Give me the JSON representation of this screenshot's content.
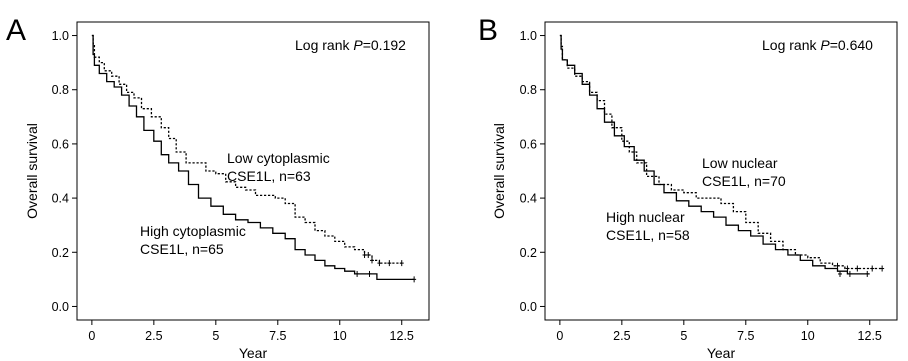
{
  "chart_data": [
    {
      "type": "line",
      "panel": "A",
      "xlabel": "Year",
      "ylabel": "Overall survival",
      "xlim": [
        -0.6,
        13.6
      ],
      "ylim": [
        -0.05,
        1.05
      ],
      "x_ticks": [
        0,
        2.5,
        5,
        7.5,
        10,
        12.5
      ],
      "x_tick_labels": [
        "0",
        "2.5",
        "5",
        "7.5",
        "10",
        "12.5"
      ],
      "y_ticks": [
        0.0,
        0.2,
        0.4,
        0.6,
        0.8,
        1.0
      ],
      "y_tick_labels": [
        "0.0",
        "0.2",
        "0.4",
        "0.6",
        "0.8",
        "1.0"
      ],
      "p_prefix": "Log rank ",
      "p_label": "P",
      "p_value": "=0.192",
      "series": [
        {
          "label_line1": "Low cytoplasmic",
          "label_line2": "CSE1L, n=63",
          "style": "dashed",
          "x": [
            0,
            0.05,
            0.1,
            0.3,
            0.5,
            0.8,
            1.1,
            1.4,
            1.7,
            2.0,
            2.4,
            2.8,
            3.1,
            3.4,
            3.8,
            4.2,
            4.6,
            5.0,
            5.4,
            5.8,
            6.2,
            6.6,
            7.0,
            7.4,
            7.8,
            8.2,
            8.6,
            9.0,
            9.4,
            9.8,
            10.2,
            10.6,
            11.0,
            11.3,
            11.6,
            12.0,
            12.5
          ],
          "y": [
            1.0,
            0.97,
            0.92,
            0.9,
            0.87,
            0.85,
            0.82,
            0.79,
            0.77,
            0.73,
            0.7,
            0.66,
            0.62,
            0.57,
            0.53,
            0.53,
            0.5,
            0.49,
            0.46,
            0.44,
            0.43,
            0.41,
            0.41,
            0.4,
            0.38,
            0.33,
            0.31,
            0.28,
            0.26,
            0.24,
            0.22,
            0.21,
            0.19,
            0.17,
            0.16,
            0.16,
            0.16
          ],
          "censor_x": [
            11.0,
            11.15,
            11.3,
            11.6,
            12.0,
            12.5
          ],
          "censor_y": [
            0.19,
            0.19,
            0.17,
            0.16,
            0.16,
            0.16
          ]
        },
        {
          "label_line1": "High cytoplasmic",
          "label_line2": "CSE1L, n=65",
          "style": "solid",
          "x": [
            0,
            0.05,
            0.1,
            0.3,
            0.6,
            0.9,
            1.2,
            1.5,
            1.8,
            2.1,
            2.5,
            2.8,
            3.1,
            3.5,
            3.9,
            4.3,
            4.8,
            5.3,
            5.8,
            6.3,
            6.8,
            7.3,
            7.8,
            8.2,
            8.6,
            9.0,
            9.4,
            9.8,
            10.2,
            10.6,
            11.0,
            11.5,
            13.0
          ],
          "y": [
            1.0,
            0.93,
            0.89,
            0.86,
            0.83,
            0.81,
            0.78,
            0.74,
            0.7,
            0.65,
            0.61,
            0.56,
            0.53,
            0.5,
            0.45,
            0.4,
            0.37,
            0.34,
            0.32,
            0.31,
            0.29,
            0.27,
            0.25,
            0.21,
            0.19,
            0.17,
            0.15,
            0.14,
            0.13,
            0.12,
            0.12,
            0.1,
            0.1
          ],
          "censor_x": [
            10.7,
            11.2,
            13.0
          ],
          "censor_y": [
            0.12,
            0.12,
            0.1
          ]
        }
      ]
    },
    {
      "type": "line",
      "panel": "B",
      "xlabel": "Year",
      "ylabel": "Overall survival",
      "xlim": [
        -0.6,
        13.6
      ],
      "ylim": [
        -0.05,
        1.05
      ],
      "x_ticks": [
        0,
        2.5,
        5,
        7.5,
        10,
        12.5
      ],
      "x_tick_labels": [
        "0",
        "2.5",
        "5",
        "7.5",
        "10",
        "12.5"
      ],
      "y_ticks": [
        0.0,
        0.2,
        0.4,
        0.6,
        0.8,
        1.0
      ],
      "y_tick_labels": [
        "0.0",
        "0.2",
        "0.4",
        "0.6",
        "0.8",
        "1.0"
      ],
      "p_prefix": "Log rank ",
      "p_label": "P",
      "p_value": "=0.640",
      "series": [
        {
          "label_line1": "Low nuclear",
          "label_line2": "CSE1L, n=70",
          "style": "dashed",
          "x": [
            0,
            0.05,
            0.1,
            0.3,
            0.6,
            0.9,
            1.2,
            1.5,
            1.8,
            2.1,
            2.5,
            2.8,
            3.1,
            3.5,
            4.0,
            4.5,
            5.0,
            5.5,
            6.0,
            6.5,
            7.0,
            7.5,
            8.0,
            8.5,
            9.0,
            9.5,
            10.0,
            10.5,
            11.0,
            11.5,
            13.0
          ],
          "y": [
            1.0,
            0.96,
            0.91,
            0.88,
            0.85,
            0.83,
            0.79,
            0.76,
            0.71,
            0.66,
            0.61,
            0.57,
            0.53,
            0.48,
            0.45,
            0.43,
            0.42,
            0.4,
            0.4,
            0.38,
            0.35,
            0.31,
            0.27,
            0.24,
            0.21,
            0.19,
            0.18,
            0.16,
            0.15,
            0.14,
            0.14
          ],
          "censor_x": [
            11.2,
            11.6,
            12.0,
            12.6,
            13.0
          ],
          "censor_y": [
            0.15,
            0.14,
            0.14,
            0.14,
            0.14
          ]
        },
        {
          "label_line1": "High nuclear",
          "label_line2": "CSE1L, n=58",
          "style": "solid",
          "x": [
            0,
            0.05,
            0.1,
            0.3,
            0.6,
            0.9,
            1.2,
            1.5,
            1.8,
            2.2,
            2.6,
            3.0,
            3.4,
            3.8,
            4.2,
            4.7,
            5.2,
            5.7,
            6.2,
            6.7,
            7.2,
            7.7,
            8.2,
            8.7,
            9.2,
            9.7,
            10.2,
            10.7,
            11.2,
            11.6,
            12.5
          ],
          "y": [
            1.0,
            0.95,
            0.91,
            0.89,
            0.86,
            0.82,
            0.78,
            0.73,
            0.68,
            0.63,
            0.59,
            0.54,
            0.5,
            0.45,
            0.42,
            0.39,
            0.37,
            0.35,
            0.33,
            0.3,
            0.28,
            0.26,
            0.23,
            0.21,
            0.19,
            0.17,
            0.15,
            0.14,
            0.13,
            0.12,
            0.12
          ],
          "censor_x": [
            11.3,
            11.7,
            12.4
          ],
          "censor_y": [
            0.12,
            0.12,
            0.12
          ]
        }
      ]
    }
  ]
}
